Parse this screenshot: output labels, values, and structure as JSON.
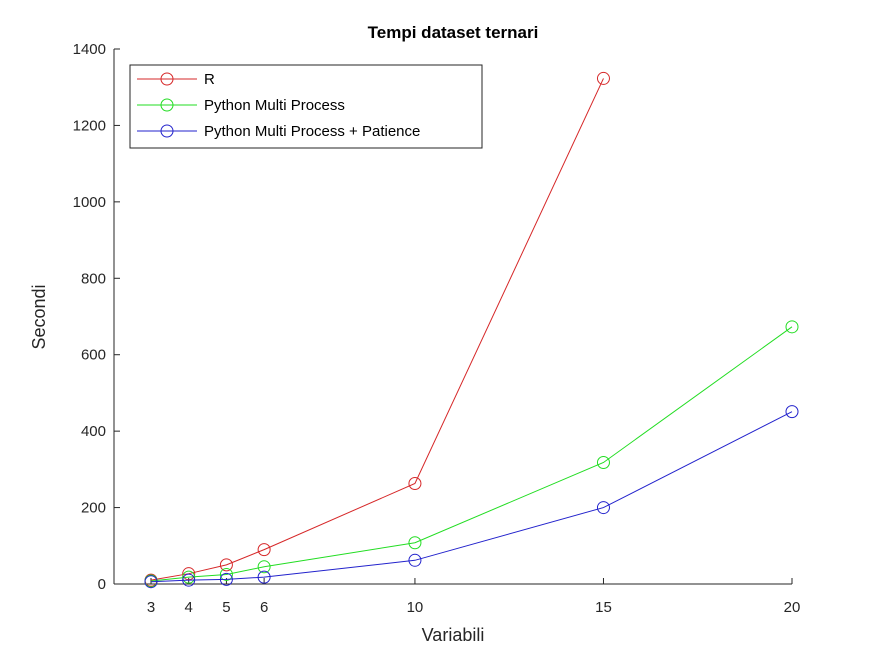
{
  "chart_data": {
    "type": "line",
    "title": "Tempi dataset ternari",
    "xlabel": "Variabili",
    "ylabel": "Secondi",
    "x": [
      3,
      4,
      5,
      6,
      10,
      15,
      20
    ],
    "xticks": [
      "3",
      "4",
      "5",
      "6",
      "10",
      "15",
      "20"
    ],
    "yticks": [
      "0",
      "200",
      "400",
      "600",
      "800",
      "1000",
      "1200",
      "1400"
    ],
    "xlim": [
      3,
      20
    ],
    "ylim": [
      0,
      1400
    ],
    "grid": false,
    "legend_position": "top-left",
    "marker": "circle",
    "series": [
      {
        "name": "R",
        "color": "#d62728",
        "x": [
          3,
          4,
          5,
          6,
          10,
          15
        ],
        "values": [
          10,
          27,
          50,
          90,
          263,
          1323
        ]
      },
      {
        "name": "Python Multi Process",
        "color": "#22dd22",
        "x": [
          3,
          4,
          5,
          6,
          10,
          15,
          20
        ],
        "values": [
          8,
          18,
          25,
          45,
          108,
          318,
          673
        ]
      },
      {
        "name": "Python Multi Process + Patience",
        "color": "#2222cc",
        "x": [
          3,
          4,
          5,
          6,
          10,
          15,
          20
        ],
        "values": [
          6,
          10,
          12,
          18,
          62,
          200,
          451
        ]
      }
    ]
  }
}
